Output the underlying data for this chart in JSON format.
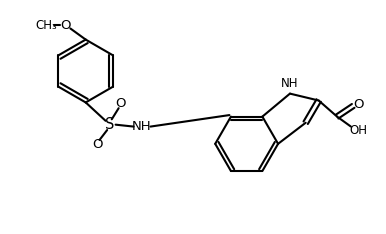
{
  "bg": "#ffffff",
  "lc": "#000000",
  "lw": 1.5,
  "fs": 8.5,
  "fig_w": 3.86,
  "fig_h": 2.34,
  "dpi": 100,
  "xlim": [
    0,
    10
  ],
  "ylim": [
    0,
    6
  ]
}
